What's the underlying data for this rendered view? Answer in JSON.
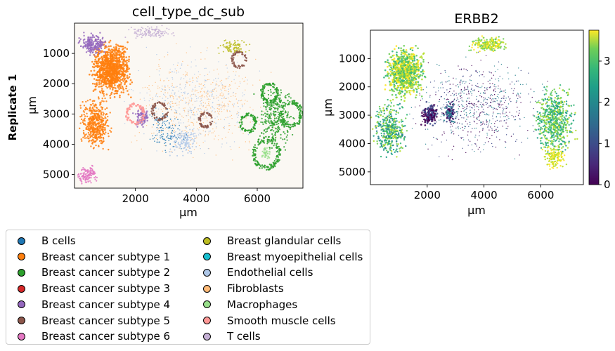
{
  "figure": {
    "row_label": "Replicate 1"
  },
  "chart_data": [
    {
      "type": "scatter",
      "title": "cell_type_dc_sub",
      "xlabel": "µm",
      "ylabel": "µm",
      "xlim": [
        0,
        7500
      ],
      "ylim": [
        5450,
        0
      ],
      "xticks": [
        2000,
        4000,
        6000
      ],
      "yticks": [
        1000,
        2000,
        3000,
        4000,
        5000
      ],
      "grid": false,
      "legend_position": "bottom-left",
      "categories": [
        {
          "name": "B cells",
          "color": "#1f77b4"
        },
        {
          "name": "Breast cancer subtype 1",
          "color": "#ff7f0e"
        },
        {
          "name": "Breast cancer subtype 2",
          "color": "#2ca02c"
        },
        {
          "name": "Breast cancer subtype 3",
          "color": "#d62728"
        },
        {
          "name": "Breast cancer subtype 4",
          "color": "#9467bd"
        },
        {
          "name": "Breast cancer subtype 5",
          "color": "#8c564b"
        },
        {
          "name": "Breast cancer subtype 6",
          "color": "#e377c2"
        },
        {
          "name": "Breast glandular cells",
          "color": "#bcbd22"
        },
        {
          "name": "Breast myoepithelial cells",
          "color": "#17becf"
        },
        {
          "name": "Endothelial cells",
          "color": "#aec7e8"
        },
        {
          "name": "Fibroblasts",
          "color": "#ffbb78"
        },
        {
          "name": "Macrophages",
          "color": "#98df8a"
        },
        {
          "name": "Smooth muscle cells",
          "color": "#ff9896"
        },
        {
          "name": "T cells",
          "color": "#c5b0d5"
        }
      ]
    },
    {
      "type": "scatter",
      "title": "ERBB2",
      "xlabel": "µm",
      "ylabel": "µm",
      "xlim": [
        0,
        7500
      ],
      "ylim": [
        5450,
        0
      ],
      "xticks": [
        2000,
        4000,
        6000
      ],
      "yticks": [
        1000,
        2000,
        3000,
        4000,
        5000
      ],
      "grid": false,
      "colorbar": {
        "colormap": "viridis",
        "range": [
          0,
          3.75
        ],
        "ticks": [
          0,
          1,
          2,
          3
        ]
      }
    }
  ]
}
